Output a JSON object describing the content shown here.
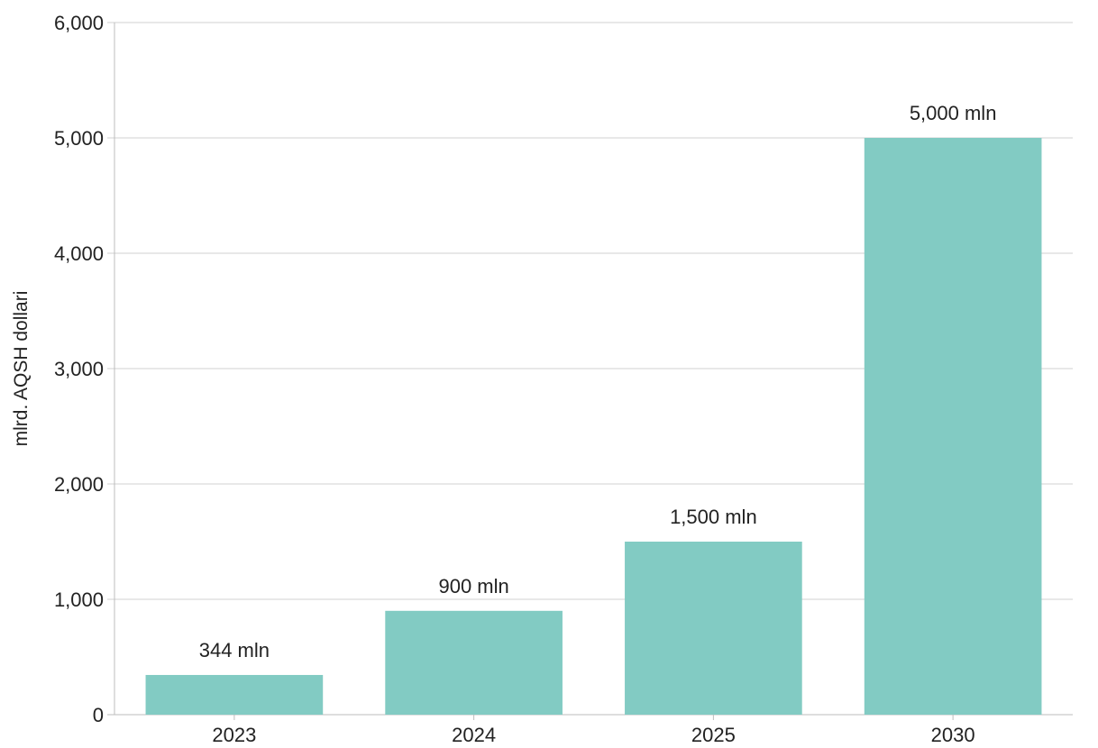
{
  "chart_data": {
    "type": "bar",
    "categories": [
      "2023",
      "2024",
      "2025",
      "2030"
    ],
    "values": [
      344,
      900,
      1500,
      5000
    ],
    "data_labels": [
      "344 mln",
      "900 mln",
      "1,500 mln",
      "5,000 mln"
    ],
    "title": "",
    "xlabel": "",
    "ylabel": "mlrd. AQSH dollari",
    "ylim": [
      0,
      6000
    ],
    "yticks": [
      0,
      1000,
      2000,
      3000,
      4000,
      5000,
      6000
    ],
    "ytick_labels": [
      "0",
      "1,000",
      "2,000",
      "3,000",
      "4,000",
      "5,000",
      "6,000"
    ],
    "grid": "horizontal",
    "legend": "none",
    "bar_color": "#82cbc3"
  }
}
